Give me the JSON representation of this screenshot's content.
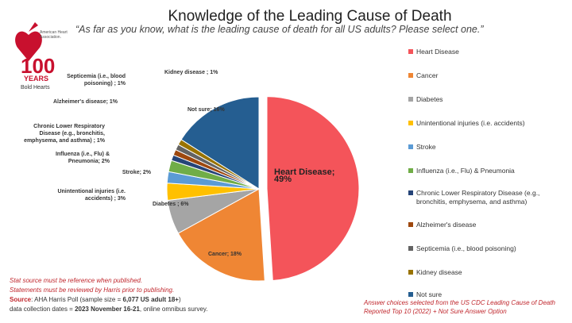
{
  "logo": {
    "top_text": "American Heart Association",
    "number": "100",
    "years": "YEARS",
    "tagline": "Bold Hearts"
  },
  "chart_data": {
    "type": "pie",
    "title": "Knowledge of the Leading Cause of Death",
    "subtitle": "“As far as you know, what is the leading cause of death for all US adults? Please select one.”",
    "slices": [
      {
        "name": "Heart Disease",
        "legend": "Heart Disease",
        "label": "Heart Disease; 49%",
        "value": 49,
        "color": "#f4545a",
        "exploded": true
      },
      {
        "name": "Cancer",
        "legend": "Cancer",
        "label": "Cancer; 18%",
        "value": 18,
        "color": "#ef8634"
      },
      {
        "name": "Diabetes",
        "legend": "Diabetes",
        "label": "Diabetes ; 6%",
        "value": 6,
        "color": "#a5a5a5"
      },
      {
        "name": "Unintentional injuries",
        "legend": "Unintentional injuries (i.e. accidents)",
        "label": "Unintentional injuries (i.e. accidents) ; 3%",
        "value": 3,
        "color": "#ffc000"
      },
      {
        "name": "Stroke",
        "legend": "Stroke",
        "label": "Stroke; 2%",
        "value": 2,
        "color": "#5b9bd5"
      },
      {
        "name": "Influenza",
        "legend": "Influenza (i.e., Flu) & Pneumonia",
        "label": "Influenza (i.e., Flu) & Pneumonia; 2%",
        "value": 2,
        "color": "#70ad47"
      },
      {
        "name": "CLRD",
        "legend": "Chronic Lower Respiratory Disease (e.g., bronchitis, emphysema, and asthma)",
        "label": "Chronic Lower Respiratory Disease (e.g., bronchitis, emphysema, and asthma) ; 1%",
        "value": 1,
        "color": "#264478"
      },
      {
        "name": "Alzheimer's",
        "legend": "Alzheimer's disease",
        "label": "Alzheimer's disease; 1%",
        "value": 1,
        "color": "#9e480e"
      },
      {
        "name": "Septicemia",
        "legend": "Septicemia (i.e., blood poisoning)",
        "label": "Septicemia (i.e., blood poisoning) ; 1%",
        "value": 1,
        "color": "#636363"
      },
      {
        "name": "Kidney disease",
        "legend": "Kidney disease",
        "label": "Kidney disease ; 1%",
        "value": 1,
        "color": "#997300"
      },
      {
        "name": "Not sure",
        "legend": "Not sure",
        "label": "Not sure; 16%",
        "value": 16,
        "color": "#255e91"
      }
    ],
    "legend_position": "right"
  },
  "notes": {
    "stat1": "Stat source must be reference when published.",
    "stat2": "Statements must be reviewed by Harris prior to publishing.",
    "source_label": "Source",
    "source_text": ": AHA Harris Poll (sample size = ",
    "sample": "6,077 US adult 18+",
    "source_end": ")",
    "dates_text": "data collection dates = ",
    "dates": "2023 November 16-21",
    "dates_end": ", online omnibus survey.",
    "answer_note": "Answer choices selected from the US CDC Leading Cause of Death Reported Top 10 (2022) + Not Sure Answer Option"
  }
}
